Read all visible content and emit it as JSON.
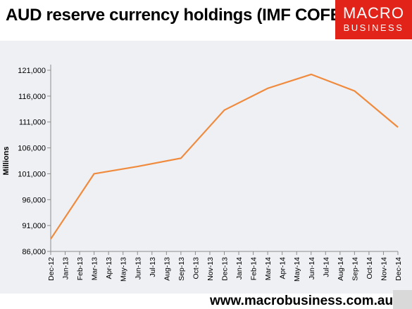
{
  "header": {
    "title": "AUD reserve currency holdings (IMF COFER)"
  },
  "logo": {
    "line1": "MACRO",
    "line2": "BUSINESS",
    "color": "#e2231a"
  },
  "footer": {
    "url": "www.macrobusiness.com.au"
  },
  "chart_data": {
    "type": "line",
    "title": "",
    "xlabel": "",
    "ylabel": "Millions",
    "ylim": [
      86000,
      121000
    ],
    "yticks": [
      86000,
      91000,
      96000,
      101000,
      106000,
      111000,
      116000,
      121000
    ],
    "ytick_labels": [
      "86,000",
      "91,000",
      "96,000",
      "101,000",
      "106,000",
      "111,000",
      "116,000",
      "121,000"
    ],
    "categories": [
      "Dec-12",
      "Jan-13",
      "Feb-13",
      "Mar-13",
      "Apr-13",
      "May-13",
      "Jun-13",
      "Jul-13",
      "Aug-13",
      "Sep-13",
      "Oct-13",
      "Nov-13",
      "Dec-13",
      "Jan-14",
      "Feb-14",
      "Mar-14",
      "Apr-14",
      "May-14",
      "Jun-14",
      "Jul-14",
      "Aug-14",
      "Sep-14",
      "Oct-14",
      "Nov-14",
      "Dec-14"
    ],
    "points": [
      {
        "x": "Dec-12",
        "y": 88400
      },
      {
        "x": "Mar-13",
        "y": 101000
      },
      {
        "x": "Jun-13",
        "y": 102400
      },
      {
        "x": "Sep-13",
        "y": 104000
      },
      {
        "x": "Dec-13",
        "y": 113300
      },
      {
        "x": "Mar-14",
        "y": 117500
      },
      {
        "x": "Jun-14",
        "y": 120200
      },
      {
        "x": "Sep-14",
        "y": 117000
      },
      {
        "x": "Dec-14",
        "y": 110000
      }
    ],
    "line_color": "#f08a3c",
    "grid": false
  }
}
